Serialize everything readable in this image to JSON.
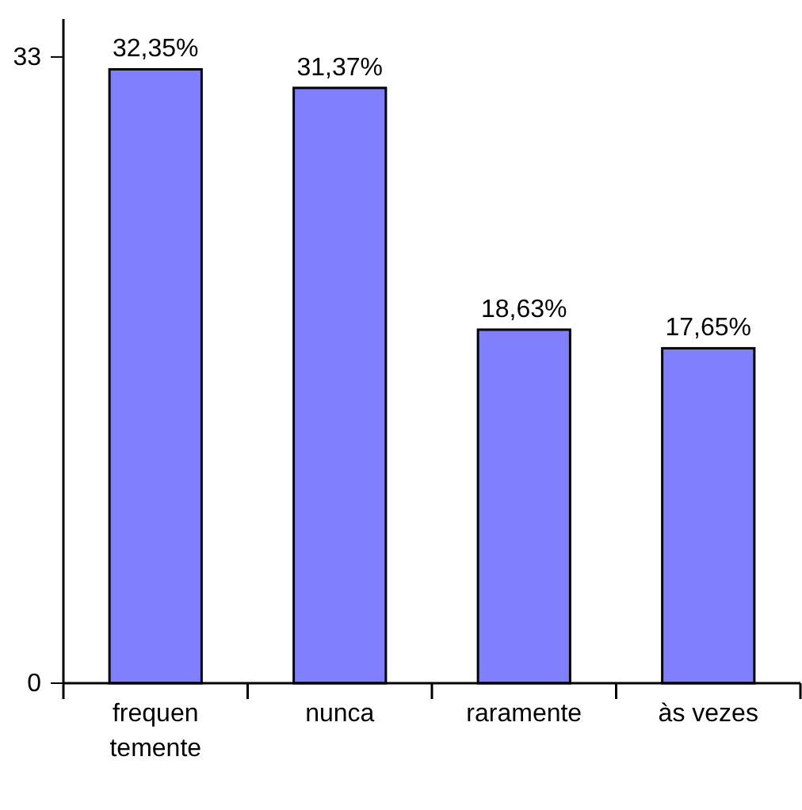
{
  "chart_data": {
    "type": "bar",
    "categories": [
      "frequentemente",
      "nunca",
      "raramente",
      "às vezes"
    ],
    "values": [
      32.35,
      31.37,
      18.63,
      17.65
    ],
    "color": "#8080ff",
    "value_labels": [
      "32,35%",
      "31,37%",
      "18,63%",
      "17,65%"
    ],
    "ylim": [
      0,
      35
    ],
    "yticks": [
      0,
      33
    ],
    "grid": false
  }
}
